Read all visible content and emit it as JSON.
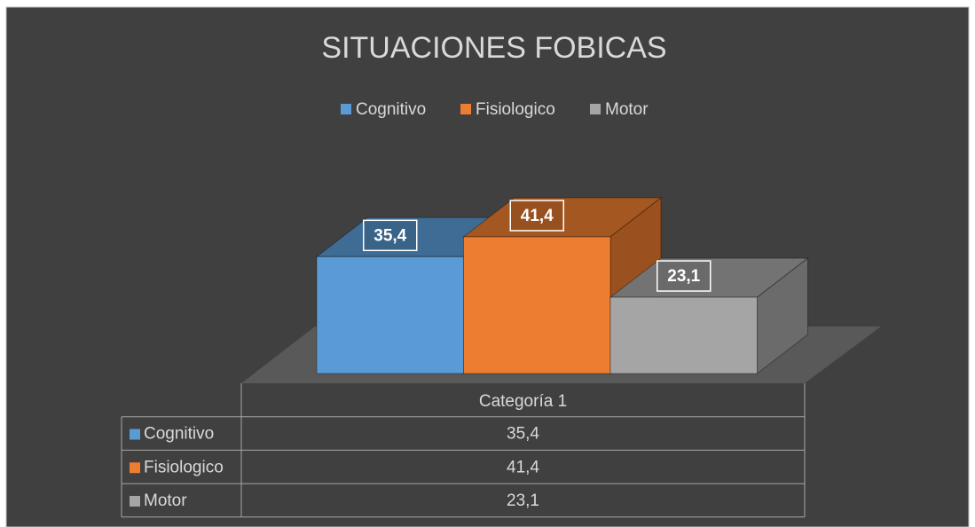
{
  "chart_data": {
    "type": "bar",
    "title": "SITUACIONES FOBICAS",
    "categories": [
      "Categoría 1"
    ],
    "series": [
      {
        "name": "Cognitivo",
        "color": "#5b9bd5",
        "values": [
          35.4
        ],
        "value_labels": [
          "35,4"
        ]
      },
      {
        "name": "Fisiologico",
        "color": "#ed7d31",
        "values": [
          41.4
        ],
        "value_labels": [
          "41,4"
        ]
      },
      {
        "name": "Motor",
        "color": "#a5a5a5",
        "values": [
          23.1
        ],
        "value_labels": [
          "23,1"
        ]
      }
    ],
    "legend": "top",
    "data_table": true
  }
}
